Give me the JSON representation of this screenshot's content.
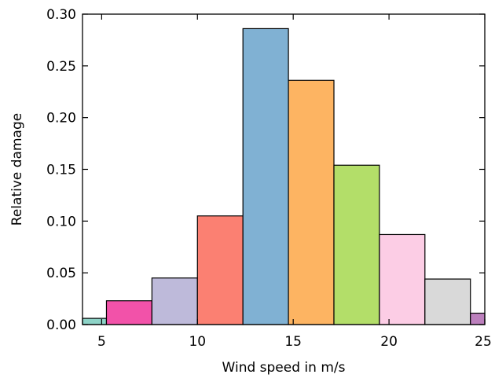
{
  "chart_data": {
    "type": "bar",
    "xlabel": "Wind speed in m/s",
    "ylabel": "Relative damage",
    "xlim": [
      4,
      25
    ],
    "ylim": [
      0,
      0.3
    ],
    "xticks": [
      5,
      10,
      15,
      20,
      25
    ],
    "yticks": [
      "0.00",
      "0.05",
      "0.10",
      "0.15",
      "0.20",
      "0.25",
      "0.30"
    ],
    "grid": false,
    "bars": [
      {
        "x0": 4.0,
        "x1": 5.25,
        "value": 0.006,
        "color": "#8dd3c7"
      },
      {
        "x0": 5.25,
        "x1": 7.625,
        "value": 0.023,
        "color": "#f252a9"
      },
      {
        "x0": 7.625,
        "x1": 10.0,
        "value": 0.045,
        "color": "#bebada"
      },
      {
        "x0": 10.0,
        "x1": 12.375,
        "value": 0.105,
        "color": "#fb8072"
      },
      {
        "x0": 12.375,
        "x1": 14.75,
        "value": 0.286,
        "color": "#80b1d3"
      },
      {
        "x0": 14.75,
        "x1": 17.125,
        "value": 0.236,
        "color": "#fdb462"
      },
      {
        "x0": 17.125,
        "x1": 19.5,
        "value": 0.154,
        "color": "#b3de69"
      },
      {
        "x0": 19.5,
        "x1": 21.875,
        "value": 0.087,
        "color": "#fccde5"
      },
      {
        "x0": 21.875,
        "x1": 24.25,
        "value": 0.044,
        "color": "#d9d9d9"
      },
      {
        "x0": 24.25,
        "x1": 25.0,
        "value": 0.011,
        "color": "#bc80bd"
      }
    ]
  }
}
